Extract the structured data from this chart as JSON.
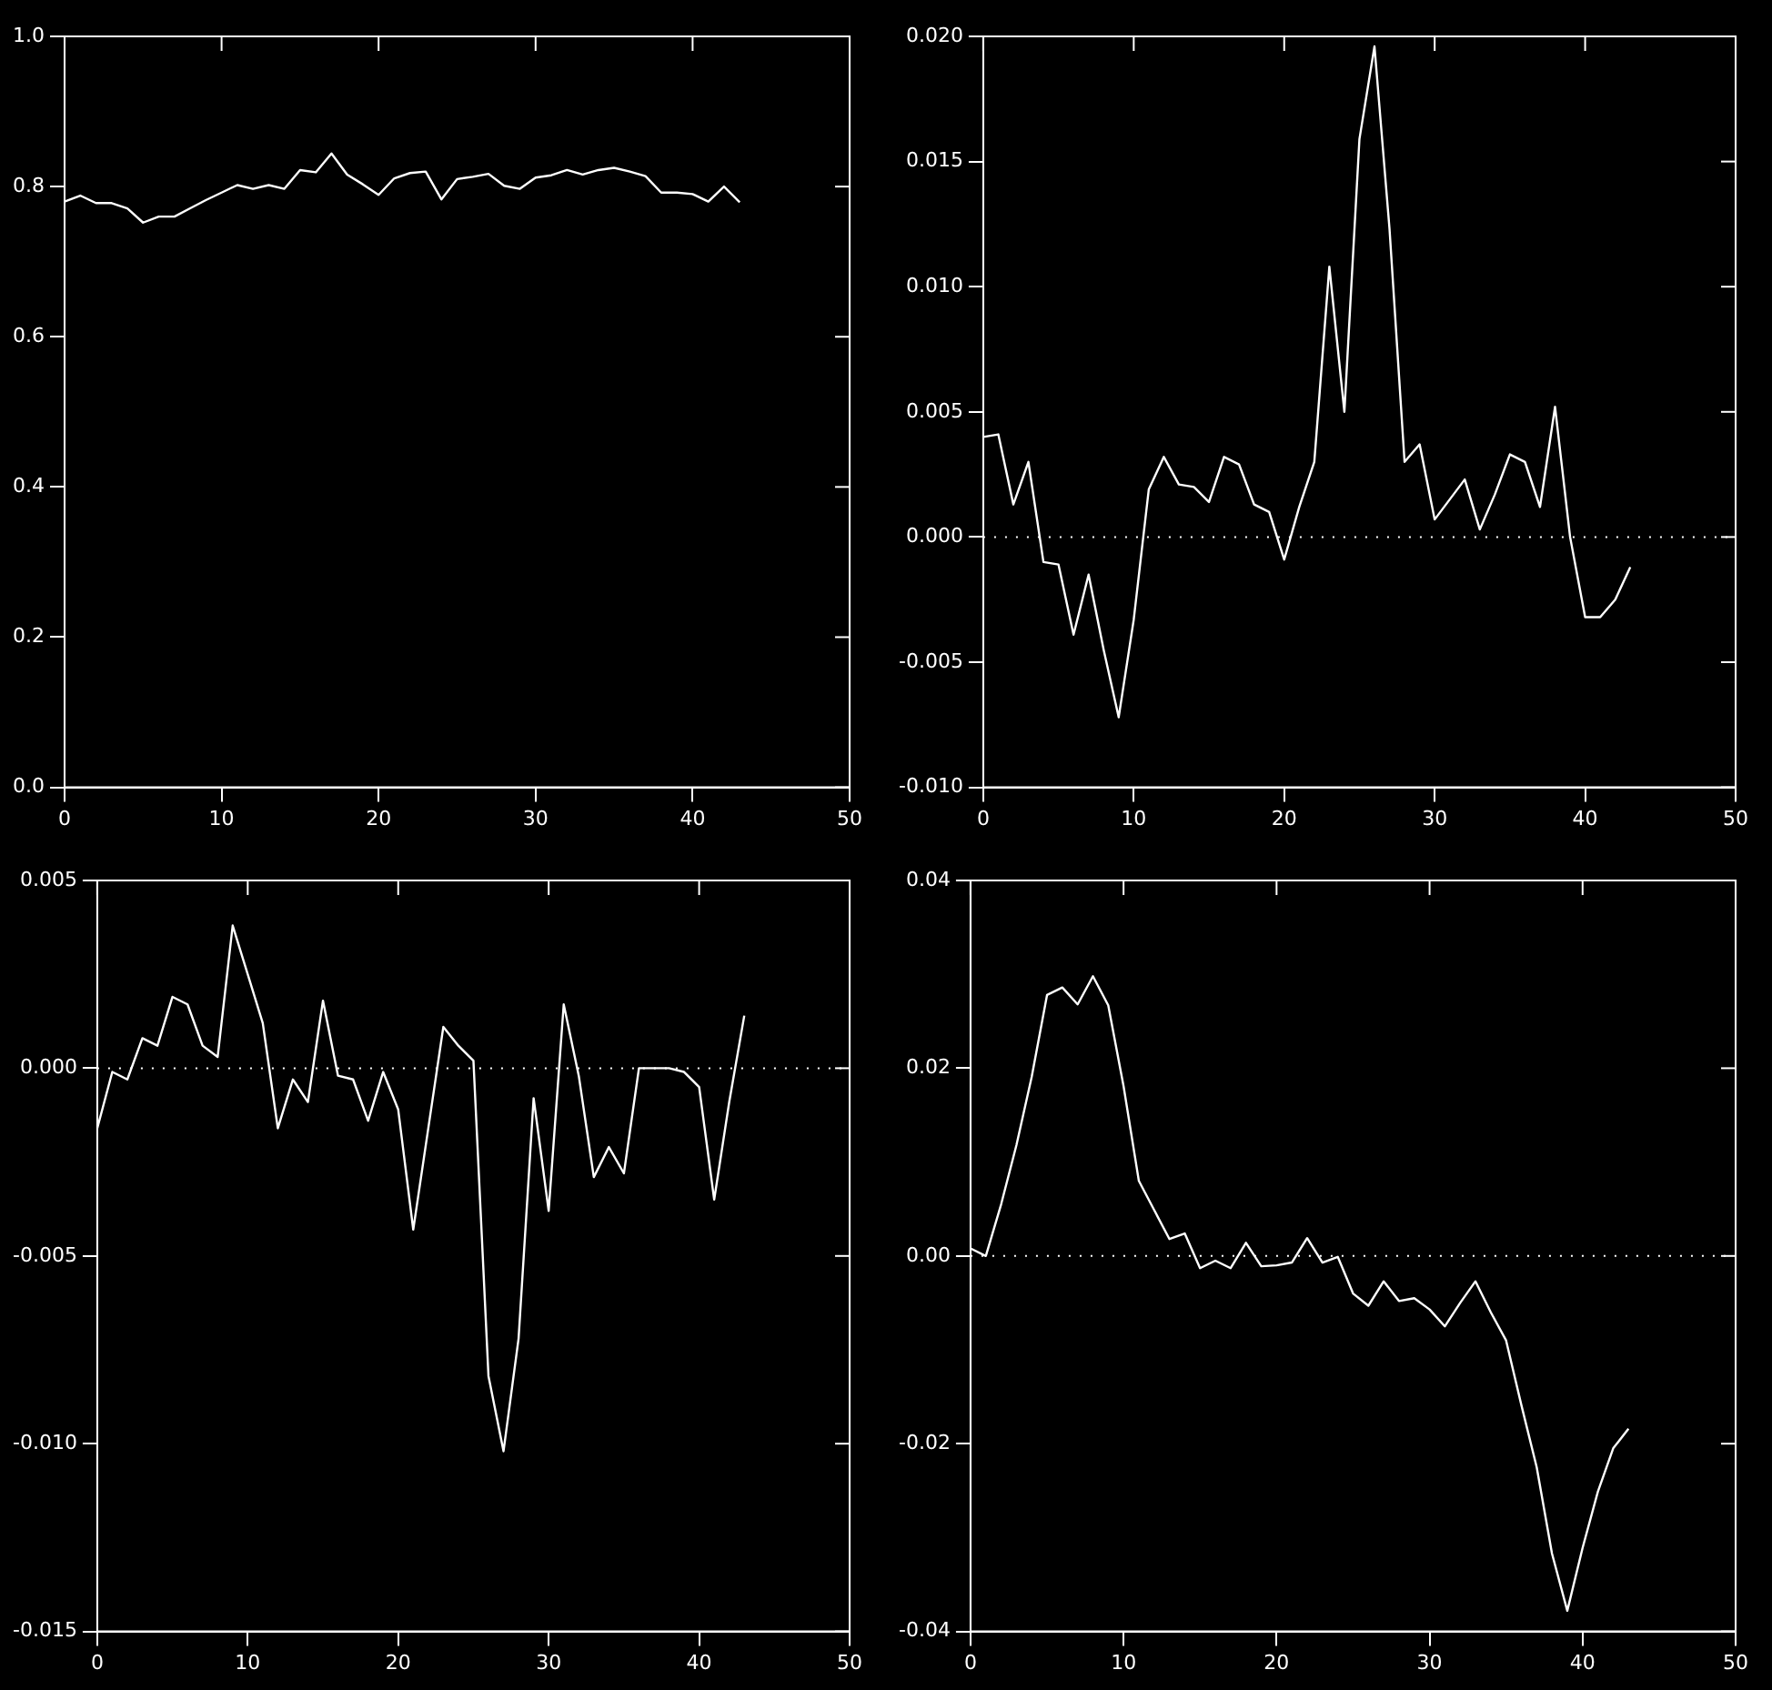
{
  "chart_data": [
    {
      "type": "line",
      "x": [
        0,
        1,
        2,
        3,
        4,
        5,
        6,
        7,
        8,
        9,
        10,
        11,
        12,
        13,
        14,
        15,
        16,
        17,
        18,
        19,
        20,
        21,
        22,
        23,
        24,
        25,
        26,
        27,
        28,
        29,
        30,
        31,
        32,
        33,
        34,
        35,
        36,
        37,
        38,
        39,
        40,
        41,
        42,
        43
      ],
      "series": [
        {
          "color": "#ffffff",
          "values": [
            0.78,
            0.788,
            0.778,
            0.778,
            0.771,
            0.752,
            0.76,
            0.76,
            0.771,
            0.782,
            0.792,
            0.802,
            0.797,
            0.802,
            0.797,
            0.822,
            0.819,
            0.844,
            0.816,
            0.803,
            0.789,
            0.811,
            0.818,
            0.82,
            0.783,
            0.81,
            0.813,
            0.817,
            0.801,
            0.797,
            0.812,
            0.815,
            0.822,
            0.816,
            0.822,
            0.825,
            0.82,
            0.814,
            0.792,
            0.792,
            0.79,
            0.78,
            0.8,
            0.779
          ]
        }
      ],
      "xlim": [
        0,
        50
      ],
      "xticks": [
        0,
        10,
        20,
        30,
        40,
        50
      ],
      "ylim": [
        0,
        1
      ],
      "yticks": [
        {
          "value": 0,
          "label": "0.0"
        },
        0.2,
        0.4,
        0.6,
        0.8,
        {
          "value": 1,
          "label": "1.0"
        }
      ],
      "grid": false,
      "legend": false,
      "marker": "none",
      "line_style": "solid"
    },
    {
      "type": "line",
      "x": [
        0,
        1,
        2,
        3,
        4,
        5,
        6,
        7,
        8,
        9,
        10,
        11,
        12,
        13,
        14,
        15,
        16,
        17,
        18,
        19,
        20,
        21,
        22,
        23,
        24,
        25,
        26,
        27,
        28,
        29,
        30,
        31,
        32,
        33,
        34,
        35,
        36,
        37,
        38,
        39,
        40,
        41,
        42,
        43
      ],
      "series": [
        {
          "color": "#ffffff",
          "values": [
            0.004,
            0.0041,
            0.0013,
            0.003,
            -0.001,
            -0.0011,
            -0.0039,
            -0.0015,
            -0.0045,
            -0.0072,
            -0.0033,
            0.0019,
            0.0032,
            0.0021,
            0.002,
            0.0014,
            0.0032,
            0.0029,
            0.0013,
            0.001,
            -0.0009,
            0.0012,
            0.003,
            0.0108,
            0.005,
            0.0159,
            0.0196,
            0.0123,
            0.003,
            0.0037,
            0.0007,
            0.0015,
            0.0023,
            0.0003,
            0.0017,
            0.0033,
            0.003,
            0.0012,
            0.0052,
            0,
            -0.0032,
            -0.0032,
            -0.0025,
            -0.0012
          ]
        }
      ],
      "xlim": [
        0,
        50
      ],
      "xticks": [
        0,
        10,
        20,
        30,
        40,
        50
      ],
      "ylim": [
        -0.01,
        0.02
      ],
      "yticks": [
        {
          "value": -0.01,
          "label": "-0.010"
        },
        {
          "value": -0.005,
          "label": "-0.005"
        },
        {
          "value": 0,
          "label": "0.000"
        },
        {
          "value": 0.005,
          "label": "0.005"
        },
        {
          "value": 0.01,
          "label": "0.010"
        },
        {
          "value": 0.015,
          "label": "0.015"
        },
        {
          "value": 0.02,
          "label": "0.020"
        }
      ],
      "ref_lines": [
        {
          "axis": "y",
          "value": 0,
          "color": "#ffffff",
          "line_style": "dotted"
        }
      ],
      "grid": false,
      "legend": false,
      "marker": "none",
      "line_style": "solid"
    },
    {
      "type": "line",
      "x": [
        0,
        1,
        2,
        3,
        4,
        5,
        6,
        7,
        8,
        9,
        10,
        11,
        12,
        13,
        14,
        15,
        16,
        17,
        18,
        19,
        20,
        21,
        22,
        23,
        24,
        25,
        26,
        27,
        28,
        29,
        30,
        31,
        32,
        33,
        34,
        35,
        36,
        37,
        38,
        39,
        40,
        41,
        42,
        43
      ],
      "series": [
        {
          "color": "#ffffff",
          "values": [
            -0.0016,
            -0.0001,
            -0.0003,
            0.0008,
            0.0006,
            0.0019,
            0.0017,
            0.0006,
            0.0003,
            0.0038,
            0.0025,
            0.0012,
            -0.0016,
            -0.0003,
            -0.0009,
            0.0018,
            -0.0002,
            -0.0003,
            -0.0014,
            -0.0001,
            -0.0011,
            -0.0043,
            -0.0016,
            0.0011,
            0.0006,
            0.0002,
            -0.0082,
            -0.0102,
            -0.0072,
            -0.0008,
            -0.0038,
            0.0017,
            -0.0002,
            -0.0029,
            -0.0021,
            -0.0028,
            0,
            0,
            0,
            -0.0001,
            -0.0005,
            -0.0035,
            -0.0009,
            0.0014
          ]
        }
      ],
      "xlim": [
        0,
        50
      ],
      "xticks": [
        0,
        10,
        20,
        30,
        40,
        50
      ],
      "ylim": [
        -0.015,
        0.005
      ],
      "yticks": [
        {
          "value": -0.015,
          "label": "-0.015"
        },
        {
          "value": -0.01,
          "label": "-0.010"
        },
        {
          "value": -0.005,
          "label": "-0.005"
        },
        {
          "value": 0,
          "label": "0.000"
        },
        {
          "value": 0.005,
          "label": "0.005"
        }
      ],
      "ref_lines": [
        {
          "axis": "y",
          "value": 0,
          "color": "#ffffff",
          "line_style": "dotted"
        }
      ],
      "grid": false,
      "legend": false,
      "marker": "none",
      "line_style": "solid"
    },
    {
      "type": "line",
      "x": [
        0,
        1,
        2,
        3,
        4,
        5,
        6,
        7,
        8,
        9,
        10,
        11,
        12,
        13,
        14,
        15,
        16,
        17,
        18,
        19,
        20,
        21,
        22,
        23,
        24,
        25,
        26,
        27,
        28,
        29,
        30,
        31,
        32,
        33,
        34,
        35,
        36,
        37,
        38,
        39,
        40,
        41,
        42,
        43
      ],
      "series": [
        {
          "color": "#ffffff",
          "values": [
            0.0008,
            0,
            0.0055,
            0.0118,
            0.0191,
            0.0278,
            0.0286,
            0.0268,
            0.0298,
            0.0267,
            0.0181,
            0.008,
            0.0049,
            0.0018,
            0.0024,
            -0.0013,
            -0.0005,
            -0.0013,
            0.0014,
            -0.0011,
            -0.001,
            -0.0007,
            0.0019,
            -0.0007,
            -0.0001,
            -0.004,
            -0.0053,
            -0.0027,
            -0.0048,
            -0.0045,
            -0.0057,
            -0.0075,
            -0.005,
            -0.0027,
            -0.006,
            -0.009,
            -0.0159,
            -0.0225,
            -0.0317,
            -0.0378,
            -0.0311,
            -0.0251,
            -0.0205,
            -0.0184
          ]
        }
      ],
      "xlim": [
        0,
        50
      ],
      "xticks": [
        0,
        10,
        20,
        30,
        40,
        50
      ],
      "ylim": [
        -0.04,
        0.04
      ],
      "yticks": [
        -0.04,
        -0.02,
        {
          "value": 0,
          "label": "0.00"
        },
        0.02,
        0.04
      ],
      "ref_lines": [
        {
          "axis": "y",
          "value": 0,
          "color": "#ffffff",
          "line_style": "dotted"
        }
      ],
      "grid": false,
      "legend": false,
      "marker": "none",
      "line_style": "solid"
    }
  ]
}
